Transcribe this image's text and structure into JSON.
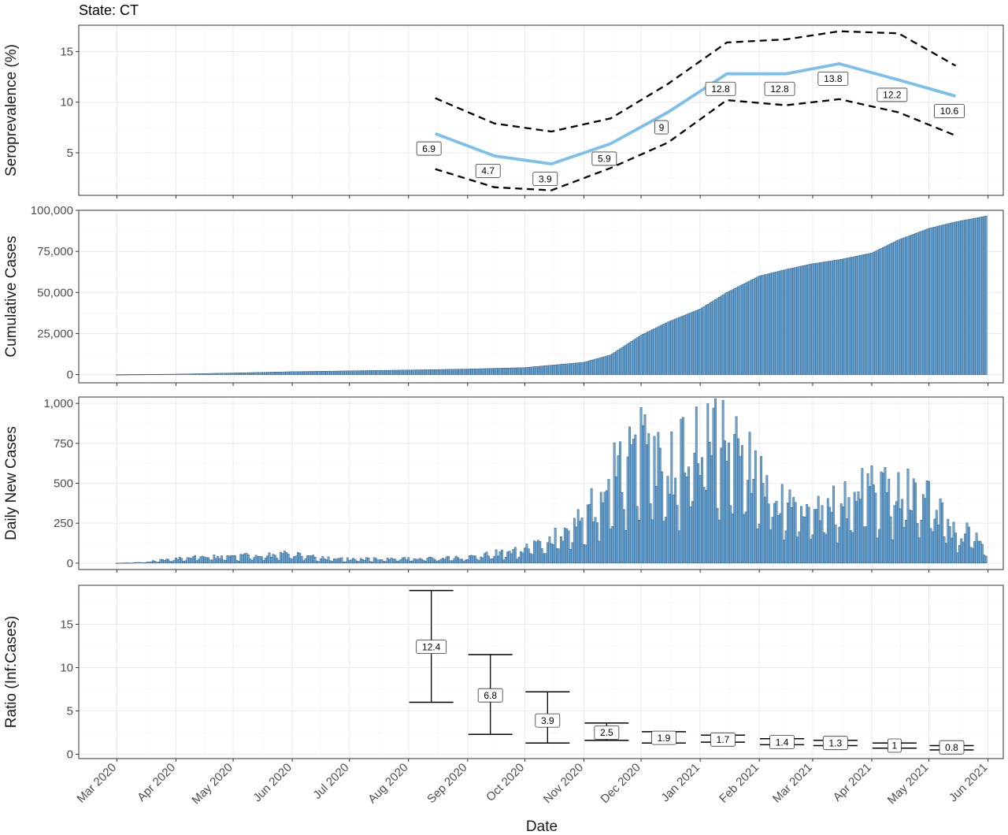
{
  "title": "State: CT",
  "xlabel": "Date",
  "colors": {
    "accent": "#7cbfea",
    "bar_fill": "#6aa7d6",
    "bar_edge": "#1f3b55",
    "ci": "#000000"
  },
  "x_ticks": [
    {
      "label": "Mar 2020",
      "date": "2020-03-01"
    },
    {
      "label": "Apr 2020",
      "date": "2020-04-01"
    },
    {
      "label": "May 2020",
      "date": "2020-05-01"
    },
    {
      "label": "Jun 2020",
      "date": "2020-06-01"
    },
    {
      "label": "Jul 2020",
      "date": "2020-07-01"
    },
    {
      "label": "Aug 2020",
      "date": "2020-08-01"
    },
    {
      "label": "Sep 2020",
      "date": "2020-09-01"
    },
    {
      "label": "Oct 2020",
      "date": "2020-10-01"
    },
    {
      "label": "Nov 2020",
      "date": "2020-11-01"
    },
    {
      "label": "Dec 2020",
      "date": "2020-12-01"
    },
    {
      "label": "Jan 2021",
      "date": "2021-01-01"
    },
    {
      "label": "Feb 2021",
      "date": "2021-02-01"
    },
    {
      "label": "Mar 2021",
      "date": "2021-03-01"
    },
    {
      "label": "Apr 2021",
      "date": "2021-04-01"
    },
    {
      "label": "May 2021",
      "date": "2021-05-01"
    },
    {
      "label": "Jun 2021",
      "date": "2021-06-01"
    }
  ],
  "chart_data": [
    {
      "type": "line",
      "ylabel": "Seroprevalence (%)",
      "ylim": [
        0.8,
        17.6
      ],
      "yticks": [
        5,
        10,
        15
      ],
      "ytick_labels": [
        "5",
        "10",
        "15"
      ],
      "grid": true,
      "x": [
        "2020-08-15",
        "2020-09-15",
        "2020-10-15",
        "2020-11-15",
        "2020-12-15",
        "2021-01-15",
        "2021-02-15",
        "2021-03-15",
        "2021-04-15",
        "2021-05-15"
      ],
      "series": [
        {
          "role": "estimate",
          "values": [
            6.9,
            4.7,
            3.9,
            5.9,
            9,
            12.8,
            12.8,
            13.8,
            12.2,
            10.6
          ],
          "labels": [
            "6.9",
            "4.7",
            "3.9",
            "5.9",
            "9",
            "12.8",
            "12.8",
            "13.8",
            "12.2",
            "10.6"
          ]
        },
        {
          "role": "upper",
          "values": [
            10.4,
            7.9,
            7.1,
            8.4,
            11.8,
            15.9,
            16.2,
            17.0,
            16.8,
            13.6
          ]
        },
        {
          "role": "lower",
          "values": [
            3.4,
            1.6,
            1.3,
            3.5,
            6.0,
            10.2,
            9.7,
            10.3,
            9.0,
            6.7
          ]
        }
      ]
    },
    {
      "type": "bar",
      "ylabel": "Cumulative Cases",
      "ylim": [
        -5000,
        100000
      ],
      "yticks": [
        0,
        25000,
        50000,
        75000,
        100000
      ],
      "ytick_labels": [
        "0",
        "25,000",
        "50,000",
        "75,000",
        "100,000"
      ],
      "grid": true,
      "x_start": "2020-03-01",
      "x_end": "2021-05-31",
      "anchors": [
        [
          "2020-03-01",
          0
        ],
        [
          "2020-04-01",
          300
        ],
        [
          "2020-05-01",
          1000
        ],
        [
          "2020-06-01",
          1800
        ],
        [
          "2020-07-01",
          2300
        ],
        [
          "2020-08-01",
          2800
        ],
        [
          "2020-09-01",
          3400
        ],
        [
          "2020-10-01",
          4300
        ],
        [
          "2020-11-01",
          7500
        ],
        [
          "2020-11-15",
          12000
        ],
        [
          "2020-12-01",
          24000
        ],
        [
          "2020-12-15",
          32000
        ],
        [
          "2021-01-01",
          40000
        ],
        [
          "2021-01-15",
          50000
        ],
        [
          "2021-02-01",
          60000
        ],
        [
          "2021-02-15",
          64000
        ],
        [
          "2021-03-01",
          67500
        ],
        [
          "2021-03-15",
          70000
        ],
        [
          "2021-04-01",
          74000
        ],
        [
          "2021-04-15",
          82000
        ],
        [
          "2021-05-01",
          89000
        ],
        [
          "2021-05-15",
          93000
        ],
        [
          "2021-05-31",
          96500
        ]
      ]
    },
    {
      "type": "bar",
      "ylabel": "Daily New Cases",
      "ylim": [
        -40,
        1040
      ],
      "yticks": [
        0,
        250,
        500,
        750,
        1000
      ],
      "ytick_labels": [
        "0",
        "250",
        "500",
        "750",
        "1,000"
      ],
      "grid": true,
      "x_start": "2020-03-01",
      "x_end": "2021-05-31",
      "anchors": [
        [
          "2020-03-01",
          0
        ],
        [
          "2020-03-15",
          5
        ],
        [
          "2020-04-01",
          30
        ],
        [
          "2020-04-15",
          45
        ],
        [
          "2020-05-01",
          40
        ],
        [
          "2020-05-15",
          55
        ],
        [
          "2020-06-01",
          60
        ],
        [
          "2020-06-15",
          35
        ],
        [
          "2020-07-01",
          25
        ],
        [
          "2020-08-01",
          30
        ],
        [
          "2020-09-01",
          35
        ],
        [
          "2020-10-01",
          90
        ],
        [
          "2020-10-15",
          160
        ],
        [
          "2020-11-01",
          280
        ],
        [
          "2020-11-15",
          600
        ],
        [
          "2020-12-01",
          700
        ],
        [
          "2020-12-15",
          600
        ],
        [
          "2021-01-01",
          800
        ],
        [
          "2021-01-15",
          850
        ],
        [
          "2021-02-01",
          600
        ],
        [
          "2021-02-15",
          350
        ],
        [
          "2021-03-01",
          300
        ],
        [
          "2021-03-15",
          380
        ],
        [
          "2021-04-01",
          520
        ],
        [
          "2021-04-15",
          480
        ],
        [
          "2021-05-01",
          380
        ],
        [
          "2021-05-15",
          220
        ],
        [
          "2021-05-31",
          150
        ]
      ],
      "peaks": [
        [
          "2020-11-20",
          760
        ],
        [
          "2020-12-01",
          975
        ],
        [
          "2020-12-03",
          930
        ],
        [
          "2021-01-05",
          1000
        ],
        [
          "2021-01-13",
          1020
        ],
        [
          "2021-04-08",
          600
        ],
        [
          "2021-04-20",
          590
        ]
      ]
    },
    {
      "type": "errorbar",
      "ylabel": "Ratio (Inf:Cases)",
      "ylim": [
        -0.5,
        19.5
      ],
      "yticks": [
        0,
        5,
        10,
        15
      ],
      "ytick_labels": [
        "0",
        "5",
        "10",
        "15"
      ],
      "grid": true,
      "x": [
        "2020-08-15",
        "2020-09-15",
        "2020-10-15",
        "2020-11-15",
        "2020-12-15",
        "2021-01-15",
        "2021-02-15",
        "2021-03-15",
        "2021-04-15",
        "2021-05-15"
      ],
      "values": [
        12.4,
        6.8,
        3.9,
        2.5,
        1.9,
        1.7,
        1.4,
        1.3,
        1,
        0.8
      ],
      "labels": [
        "12.4",
        "6.8",
        "3.9",
        "2.5",
        "1.9",
        "1.7",
        "1.4",
        "1.3",
        "1",
        "0.8"
      ],
      "upper": [
        18.9,
        11.5,
        7.2,
        3.6,
        2.6,
        2.2,
        1.8,
        1.6,
        1.3,
        1.0
      ],
      "lower": [
        6.0,
        2.3,
        1.3,
        1.6,
        1.3,
        1.4,
        1.1,
        1.0,
        0.7,
        0.5
      ]
    }
  ]
}
